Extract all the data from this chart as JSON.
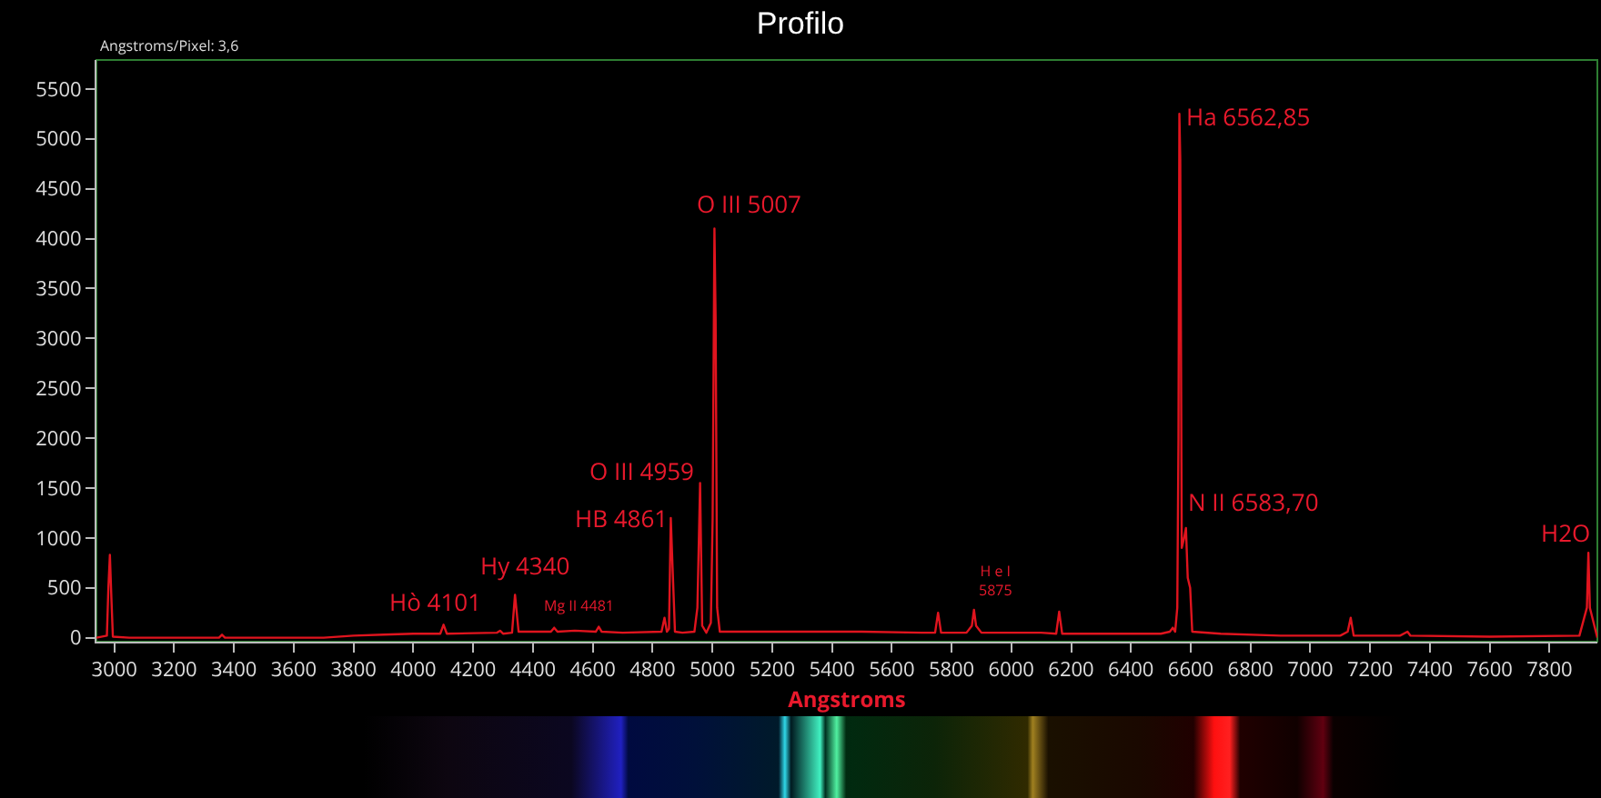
{
  "chart_data": {
    "type": "line",
    "title": "Profilo",
    "xlabel": "Angstroms",
    "xlim": [
      2940,
      7960
    ],
    "ylim": [
      -40,
      5790
    ],
    "xticks": [
      3000,
      3200,
      3400,
      3600,
      3800,
      4000,
      4200,
      4400,
      4600,
      4800,
      5000,
      5200,
      5400,
      5600,
      5800,
      6000,
      6200,
      6400,
      6600,
      6800,
      7000,
      7200,
      7400,
      7600,
      7800
    ],
    "yticks": [
      0,
      500,
      1000,
      1500,
      2000,
      2500,
      3000,
      3500,
      4000,
      4500,
      5000,
      5500
    ],
    "marker": "none",
    "line_style": "solid",
    "series": [
      {
        "color": "#e0141e",
        "x": [
          2940,
          2975,
          2980,
          2985,
          2990,
          2995,
          3050,
          3350,
          3360,
          3370,
          3700,
          3800,
          3900,
          4000,
          4090,
          4101,
          4112,
          4280,
          4290,
          4300,
          4330,
          4340,
          4352,
          4400,
          4460,
          4471,
          4482,
          4540,
          4610,
          4620,
          4630,
          4700,
          4830,
          4840,
          4848,
          4855,
          4861,
          4867,
          4875,
          4900,
          4940,
          4950,
          4959,
          4966,
          4980,
          4995,
          5001,
          5007,
          5011,
          5016,
          5025,
          5100,
          5300,
          5500,
          5700,
          5745,
          5755,
          5765,
          5850,
          5868,
          5875,
          5882,
          5900,
          6100,
          6150,
          6160,
          6170,
          6300,
          6500,
          6530,
          6540,
          6548,
          6555,
          6559,
          6562,
          6565,
          6570,
          6578,
          6584,
          6590,
          6598,
          6605,
          6700,
          6900,
          7000,
          7100,
          7125,
          7135,
          7145,
          7300,
          7325,
          7335,
          7600,
          7900,
          7925,
          7930,
          7935,
          7960
        ],
        "values": [
          0,
          20,
          500,
          830,
          400,
          10,
          0,
          0,
          30,
          0,
          0,
          20,
          30,
          40,
          40,
          130,
          40,
          50,
          70,
          40,
          50,
          430,
          60,
          60,
          60,
          100,
          60,
          70,
          60,
          110,
          60,
          50,
          60,
          200,
          60,
          90,
          1200,
          700,
          60,
          50,
          60,
          300,
          1550,
          120,
          50,
          150,
          1200,
          4100,
          3200,
          300,
          60,
          60,
          60,
          60,
          50,
          50,
          250,
          50,
          50,
          120,
          280,
          120,
          50,
          50,
          40,
          260,
          40,
          40,
          40,
          60,
          100,
          60,
          300,
          2000,
          5250,
          4800,
          900,
          1000,
          1100,
          600,
          500,
          60,
          40,
          20,
          20,
          20,
          60,
          200,
          20,
          20,
          60,
          20,
          10,
          20,
          300,
          850,
          300,
          0
        ]
      }
    ],
    "annotations": [
      {
        "text": "O III 5007",
        "x": 5007,
        "y": 4100
      },
      {
        "text": "Ha 6562,85",
        "x": 6562,
        "y": 5250
      },
      {
        "text": "O III 4959",
        "x": 4959,
        "y": 1550
      },
      {
        "text": "HB 4861",
        "x": 4861,
        "y": 1200
      },
      {
        "text": "Hy 4340",
        "x": 4340,
        "y": 430
      },
      {
        "text": "Hò 4101",
        "x": 4101,
        "y": 130
      },
      {
        "text": "Mg II 4481",
        "x": 4471,
        "y": 100
      },
      {
        "text": "H e I\n5875",
        "x": 5875,
        "y": 280
      },
      {
        "text": "N II 6583,70",
        "x": 6584,
        "y": 1100
      },
      {
        "text": "H2O",
        "x": 7930,
        "y": 850
      },
      "Angstroms/Pixel: 3,6"
    ]
  }
}
